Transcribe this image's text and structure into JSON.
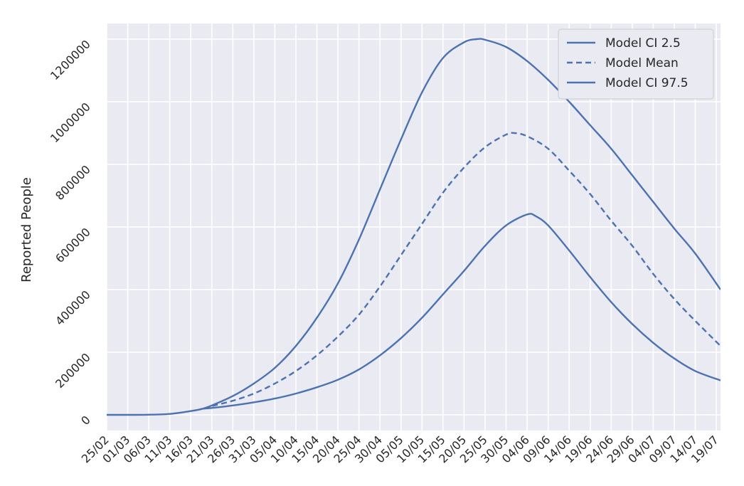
{
  "chart_data": {
    "type": "line",
    "title": "",
    "xlabel": "",
    "ylabel": "Reported People",
    "ylim": [
      -50000,
      1250000
    ],
    "grid": true,
    "legend_position": "top-right",
    "x_start": "25/02",
    "x_end": "20/07",
    "x_ticks": [
      "25/02",
      "01/03",
      "06/03",
      "11/03",
      "16/03",
      "21/03",
      "26/03",
      "31/03",
      "05/04",
      "10/04",
      "15/04",
      "20/04",
      "25/04",
      "30/04",
      "05/05",
      "10/05",
      "15/05",
      "20/05",
      "25/05",
      "30/05",
      "04/06",
      "09/06",
      "14/06",
      "19/06",
      "24/06",
      "29/06",
      "04/07",
      "09/07",
      "14/07",
      "19/07"
    ],
    "y_ticks": [
      0,
      200000,
      400000,
      600000,
      800000,
      1000000,
      1200000
    ],
    "y_tick_labels": [
      "0",
      "200000",
      "400000",
      "600000",
      "800000",
      "1000000",
      "1200000"
    ],
    "series": [
      {
        "name": "Model CI 2.5",
        "style": "solid",
        "color": "#4c72b0",
        "x": [
          "25/02",
          "01/03",
          "06/03",
          "11/03",
          "16/03",
          "19/03",
          "21/03",
          "26/03",
          "31/03",
          "05/04",
          "10/04",
          "15/04",
          "20/04",
          "25/04",
          "30/04",
          "05/05",
          "10/05",
          "15/05",
          "20/05",
          "23/05",
          "25/05",
          "30/05",
          "04/06",
          "09/06",
          "14/06",
          "19/06",
          "24/06",
          "29/06",
          "04/07",
          "09/07",
          "14/07",
          "20/07"
        ],
        "values": [
          0,
          0,
          500,
          3000,
          12000,
          20000,
          30000,
          60000,
          100000,
          150000,
          220000,
          310000,
          420000,
          560000,
          720000,
          880000,
          1030000,
          1140000,
          1190000,
          1200000,
          1198000,
          1175000,
          1130000,
          1070000,
          1000000,
          925000,
          850000,
          765000,
          680000,
          595000,
          515000,
          400000
        ]
      },
      {
        "name": "Model Mean",
        "style": "dashed",
        "color": "#4c72b0",
        "x": [
          "19/03",
          "21/03",
          "26/03",
          "31/03",
          "05/04",
          "10/04",
          "15/04",
          "20/04",
          "25/04",
          "30/04",
          "05/05",
          "10/05",
          "15/05",
          "20/05",
          "25/05",
          "30/05",
          "01/06",
          "04/06",
          "09/06",
          "14/06",
          "19/06",
          "24/06",
          "29/06",
          "04/07",
          "09/07",
          "14/07",
          "20/07"
        ],
        "values": [
          20000,
          28000,
          45000,
          68000,
          100000,
          140000,
          190000,
          250000,
          320000,
          410000,
          510000,
          610000,
          710000,
          790000,
          855000,
          895000,
          900000,
          890000,
          850000,
          780000,
          705000,
          620000,
          540000,
          450000,
          370000,
          300000,
          220000
        ]
      },
      {
        "name": "Model CI 97.5",
        "style": "solid",
        "color": "#4c72b0",
        "x": [
          "19/03",
          "21/03",
          "26/03",
          "31/03",
          "05/04",
          "10/04",
          "15/04",
          "20/04",
          "25/04",
          "30/04",
          "05/05",
          "10/05",
          "15/05",
          "20/05",
          "25/05",
          "30/05",
          "04/06",
          "06/06",
          "09/06",
          "14/06",
          "19/06",
          "24/06",
          "29/06",
          "04/07",
          "09/07",
          "14/07",
          "20/07"
        ],
        "values": [
          20000,
          22000,
          30000,
          40000,
          52000,
          68000,
          88000,
          112000,
          145000,
          190000,
          245000,
          310000,
          385000,
          460000,
          540000,
          605000,
          640000,
          635000,
          605000,
          525000,
          440000,
          360000,
          290000,
          230000,
          180000,
          140000,
          110000
        ]
      }
    ]
  }
}
